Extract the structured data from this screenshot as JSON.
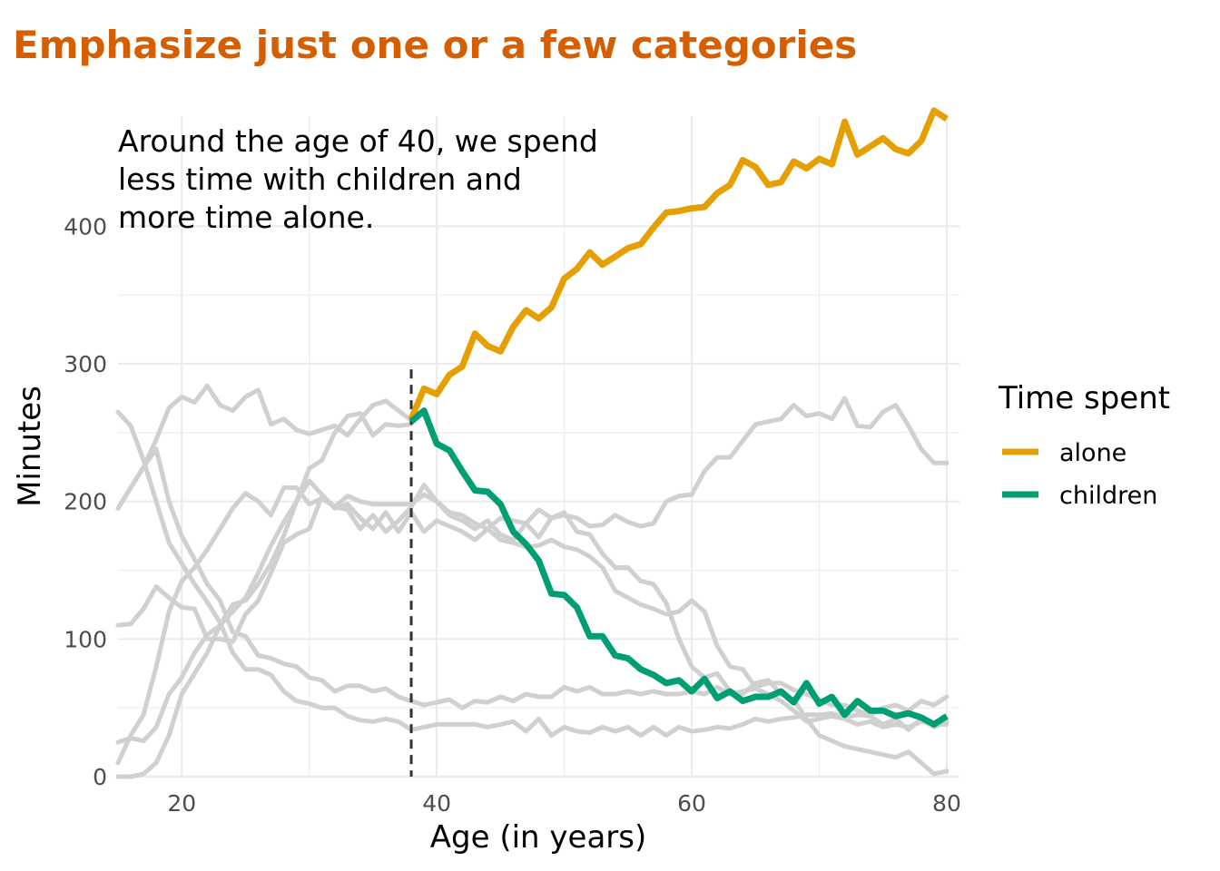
{
  "chart_data": {
    "type": "line",
    "title": "Emphasize just one or a few categories",
    "xlabel": "Age (in years)",
    "ylabel": "Minutes",
    "xlim": [
      15,
      81
    ],
    "ylim": [
      0,
      480
    ],
    "x_ticks": [
      20,
      40,
      60,
      80
    ],
    "y_ticks": [
      0,
      100,
      200,
      300,
      400
    ],
    "grid": true,
    "legend_position": "right",
    "legend_title": "Time spent",
    "annotation": {
      "lines": [
        "Around the age of 40, we spend",
        "less time with children and",
        "more time alone."
      ]
    },
    "reference_line": {
      "x": 38,
      "style": "dashed"
    },
    "colors": {
      "title": "#d55e00",
      "alone": "#e69f00",
      "children": "#009e73",
      "background_series": "#d0d0d0",
      "grid": "#ebebeb",
      "reference_line": "#333333"
    },
    "highlighted_series": [
      {
        "name": "alone",
        "color": "#e69f00",
        "x": [
          38,
          39,
          40,
          41,
          42,
          43,
          44,
          45,
          46,
          47,
          48,
          49,
          50,
          51,
          52,
          53,
          54,
          55,
          56,
          57,
          58,
          59,
          60,
          61,
          62,
          63,
          64,
          65,
          66,
          67,
          68,
          69,
          70,
          71,
          72,
          73,
          74,
          75,
          76,
          77,
          78,
          79,
          80
        ],
        "y": [
          260,
          282,
          278,
          292,
          298,
          322,
          313,
          309,
          327,
          339,
          333,
          341,
          362,
          369,
          381,
          372,
          378,
          384,
          387,
          399,
          410,
          411,
          413,
          414,
          424,
          430,
          448,
          443,
          430,
          432,
          447,
          442,
          449,
          445,
          476,
          452,
          458,
          464,
          456,
          453,
          462,
          484,
          478
        ]
      },
      {
        "name": "children",
        "color": "#009e73",
        "x": [
          38,
          39,
          40,
          41,
          42,
          43,
          44,
          45,
          46,
          47,
          48,
          49,
          50,
          51,
          52,
          53,
          54,
          55,
          56,
          57,
          58,
          59,
          60,
          61,
          62,
          63,
          64,
          65,
          66,
          67,
          68,
          69,
          70,
          71,
          72,
          73,
          74,
          75,
          76,
          77,
          78,
          79,
          80
        ],
        "y": [
          258,
          266,
          242,
          237,
          222,
          208,
          207,
          198,
          178,
          169,
          157,
          133,
          132,
          123,
          102,
          102,
          88,
          86,
          78,
          74,
          68,
          70,
          62,
          71,
          57,
          62,
          55,
          58,
          58,
          62,
          54,
          68,
          53,
          58,
          45,
          55,
          48,
          48,
          44,
          46,
          43,
          38,
          44
        ]
      }
    ],
    "background_series": [
      {
        "x": [
          15,
          16,
          17,
          18,
          19,
          20,
          21,
          22,
          23,
          24,
          25,
          26,
          27,
          28,
          29,
          30,
          31,
          32,
          33,
          34,
          35,
          36,
          37,
          38,
          39,
          40,
          41,
          42,
          43,
          44,
          45,
          46,
          47,
          48,
          49,
          50,
          51,
          52,
          53,
          54,
          55,
          56,
          57,
          58,
          59,
          60,
          61,
          62,
          63,
          64,
          65,
          66,
          67,
          68,
          69,
          70,
          71,
          72,
          73,
          74,
          75,
          76,
          77,
          78,
          79,
          80
        ],
        "y": [
          265,
          255,
          230,
          200,
          170,
          155,
          140,
          127,
          112,
          90,
          78,
          78,
          74,
          62,
          55,
          53,
          50,
          50,
          44,
          41,
          40,
          42,
          40,
          34,
          36,
          38,
          38,
          38,
          38,
          36,
          38,
          40,
          33,
          42,
          30,
          36,
          33,
          32,
          36,
          33,
          36,
          30,
          36,
          30,
          36,
          33,
          34,
          36,
          35,
          38,
          42,
          40,
          42,
          43,
          45,
          45,
          46,
          43,
          45,
          44,
          38,
          42,
          34,
          42,
          36,
          40
        ]
      },
      {
        "x": [
          15,
          16,
          17,
          18,
          19,
          20,
          21,
          22,
          23,
          24,
          25,
          26,
          27,
          28,
          29,
          30,
          31,
          32,
          33,
          34,
          35,
          36,
          37,
          38,
          39,
          40,
          41,
          42,
          43,
          44,
          45,
          46,
          47,
          48,
          49,
          50,
          51,
          52,
          53,
          54,
          55,
          56,
          57,
          58,
          59,
          60,
          61,
          62,
          63,
          64,
          65,
          66,
          67,
          68,
          69,
          70,
          71,
          72,
          73,
          74,
          75,
          76,
          77,
          78,
          79,
          80
        ],
        "y": [
          195,
          210,
          225,
          238,
          200,
          175,
          158,
          140,
          128,
          105,
          102,
          88,
          86,
          82,
          80,
          72,
          70,
          62,
          66,
          66,
          62,
          64,
          58,
          55,
          52,
          54,
          56,
          50,
          55,
          54,
          58,
          55,
          60,
          58,
          58,
          65,
          62,
          65,
          60,
          60,
          62,
          60,
          62,
          60,
          60,
          62,
          60,
          65,
          60,
          62,
          64,
          60,
          55,
          48,
          40,
          42,
          44,
          42,
          38,
          40,
          36,
          38,
          36,
          40,
          38,
          38
        ]
      },
      {
        "x": [
          15,
          16,
          17,
          18,
          19,
          20,
          21,
          22,
          23,
          24,
          25,
          26,
          27,
          28,
          29,
          30,
          31,
          32,
          33,
          34,
          35,
          36,
          37,
          38,
          39,
          40,
          41,
          42,
          43,
          44,
          45,
          46,
          47,
          48,
          49,
          50,
          51,
          52,
          53,
          54,
          55,
          56,
          57,
          58,
          59,
          60,
          61,
          62,
          63,
          64,
          65,
          66,
          67,
          68,
          69,
          70,
          71,
          72,
          73,
          74,
          75,
          76,
          77,
          78,
          79,
          80
        ],
        "y": [
          110,
          111,
          122,
          138,
          130,
          123,
          122,
          100,
          100,
          98,
          118,
          128,
          148,
          170,
          176,
          180,
          204,
          196,
          204,
          200,
          198,
          198,
          198,
          198,
          205,
          200,
          192,
          190,
          184,
          180,
          172,
          170,
          167,
          168,
          172,
          167,
          165,
          160,
          152,
          135,
          130,
          125,
          122,
          118,
          120,
          128,
          120,
          95,
          80,
          78,
          65,
          68,
          68,
          63,
          60,
          56,
          52,
          52,
          48,
          45,
          50,
          52,
          48,
          55,
          52,
          58
        ]
      },
      {
        "x": [
          15,
          16,
          17,
          18,
          19,
          20,
          21,
          22,
          23,
          24,
          25,
          26,
          27,
          28,
          29,
          30,
          31,
          32,
          33,
          34,
          35,
          36,
          37,
          38,
          39,
          40,
          41,
          42,
          43,
          44,
          45,
          46,
          47,
          48,
          49,
          50,
          51,
          52,
          53,
          54,
          55,
          56,
          57,
          58,
          59,
          60,
          61,
          62,
          63,
          64,
          65,
          66,
          67,
          68,
          69,
          70,
          71,
          72,
          73,
          74,
          75,
          76,
          77,
          78,
          79,
          80
        ],
        "y": [
          25,
          28,
          26,
          36,
          60,
          72,
          90,
          103,
          110,
          120,
          130,
          148,
          168,
          185,
          200,
          215,
          205,
          195,
          198,
          188,
          180,
          192,
          178,
          192,
          178,
          186,
          182,
          178,
          172,
          180,
          188,
          186,
          184,
          174,
          188,
          190,
          188,
          182,
          183,
          190,
          185,
          182,
          184,
          200,
          204,
          205,
          222,
          232,
          232,
          244,
          256,
          258,
          260,
          270,
          262,
          264,
          260,
          275,
          255,
          254,
          265,
          270,
          255,
          238,
          228,
          228
        ]
      },
      {
        "x": [
          15,
          16,
          17,
          18,
          19,
          20,
          21,
          22,
          23,
          24,
          25,
          26,
          27,
          28,
          29,
          30,
          31,
          32,
          33,
          34,
          35,
          36,
          37,
          38,
          39,
          40,
          41,
          42,
          43,
          44,
          45,
          46,
          47,
          48,
          49,
          50,
          51,
          52,
          53,
          54,
          55,
          56,
          57,
          58,
          59,
          60,
          61,
          62,
          63,
          64,
          65,
          66,
          67,
          68,
          69,
          70,
          71,
          72,
          73,
          74,
          75,
          76,
          77,
          78,
          79,
          80
        ],
        "y": [
          10,
          30,
          45,
          80,
          120,
          142,
          152,
          165,
          180,
          195,
          206,
          200,
          190,
          210,
          210,
          198,
          202,
          196,
          194,
          180,
          190,
          178,
          186,
          196,
          212,
          200,
          190,
          186,
          180,
          186,
          176,
          172,
          184,
          194,
          188,
          192,
          178,
          176,
          162,
          152,
          152,
          142,
          140,
          126,
          100,
          80,
          72,
          75,
          62,
          60,
          68,
          70,
          60,
          56,
          42,
          30,
          26,
          22,
          20,
          18,
          16,
          14,
          18,
          10,
          2,
          4
        ]
      },
      {
        "x": [
          15,
          16,
          17,
          18,
          19,
          20,
          21,
          22,
          23,
          24,
          25,
          26,
          27,
          28,
          29,
          30,
          31,
          32,
          33,
          34,
          35,
          36,
          37,
          38
        ],
        "y": [
          0,
          0,
          2,
          10,
          30,
          60,
          75,
          90,
          110,
          125,
          128,
          140,
          155,
          175,
          200,
          224,
          230,
          250,
          262,
          264,
          248,
          256,
          255,
          256
        ]
      },
      {
        "x": [
          15,
          16,
          17,
          18,
          19,
          20,
          21,
          22,
          23,
          24,
          25,
          26,
          27,
          28,
          29,
          30,
          31,
          32,
          33,
          34,
          35,
          36,
          37,
          38
        ],
        "y": [
          195,
          210,
          225,
          245,
          268,
          276,
          272,
          284,
          270,
          266,
          276,
          281,
          256,
          260,
          252,
          249,
          252,
          255,
          248,
          260,
          270,
          273,
          266,
          259
        ]
      }
    ]
  }
}
